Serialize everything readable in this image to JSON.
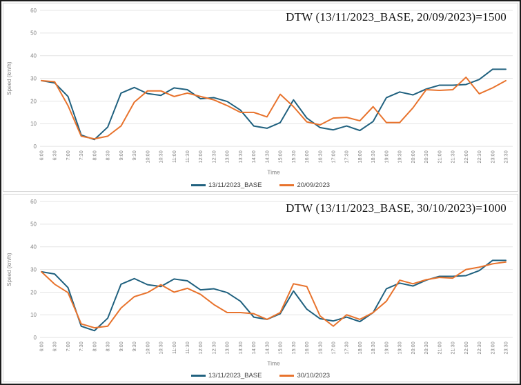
{
  "colors": {
    "base_series": "#20617f",
    "comparison_series": "#e8732d",
    "gridline": "#e4e4e4",
    "axis_text": "#808080",
    "legend_text": "#3f3f3f",
    "title_text": "#111111",
    "panel_border": "#d8d8d8",
    "page_border": "#1c1c1c"
  },
  "chart_data": [
    {
      "type": "line",
      "title": "DTW (13/11/2023_BASE, 20/09/2023)=1500",
      "xlabel": "Time",
      "ylabel": "Speed (km/h)",
      "ylim": [
        0,
        60
      ],
      "yticks": [
        0,
        10,
        20,
        30,
        40,
        50,
        60
      ],
      "grid": true,
      "legend_position": "bottom",
      "categories": [
        "6:00",
        "6:30",
        "7:00",
        "7:30",
        "8:00",
        "8:30",
        "9:00",
        "9:30",
        "10:00",
        "10:30",
        "11:00",
        "11:30",
        "12:00",
        "12:30",
        "13:00",
        "13:30",
        "14:00",
        "14:30",
        "15:00",
        "15:30",
        "16:00",
        "16:30",
        "17:00",
        "17:30",
        "18:00",
        "18:30",
        "19:00",
        "19:30",
        "20:00",
        "20:30",
        "21:00",
        "21:30",
        "22:00",
        "22:30",
        "23:00",
        "23:30"
      ],
      "series": [
        {
          "name": "13/11/2023_BASE",
          "color": "#20617f",
          "values": [
            29,
            28,
            22,
            5,
            3,
            8.5,
            23.5,
            26,
            23.3,
            22.5,
            25.8,
            25,
            21,
            21.5,
            19.8,
            16,
            9,
            8,
            10.5,
            20.5,
            12.5,
            8.3,
            7.3,
            9,
            7,
            11,
            21.5,
            24,
            22.7,
            25.3,
            27,
            27,
            27.3,
            29.5,
            34,
            34
          ]
        },
        {
          "name": "20/09/2023",
          "color": "#e8732d",
          "values": [
            29,
            28.5,
            18,
            4.5,
            3.3,
            4.5,
            9,
            19.5,
            24.5,
            24.5,
            22,
            23.5,
            22,
            20.5,
            18,
            15,
            15,
            13,
            23,
            17.5,
            10.8,
            9.5,
            12.5,
            12.8,
            11.3,
            17.5,
            10.5,
            10.5,
            17,
            25,
            24.7,
            25,
            30.5,
            23.2,
            25.8,
            29
          ]
        }
      ]
    },
    {
      "type": "line",
      "title": "DTW (13/11/2023_BASE, 30/10/2023)=1000",
      "xlabel": "Time",
      "ylabel": "Speed (km/h)",
      "ylim": [
        0,
        60
      ],
      "yticks": [
        0,
        10,
        20,
        30,
        40,
        50,
        60
      ],
      "grid": true,
      "legend_position": "bottom",
      "categories": [
        "6:00",
        "6:30",
        "7:00",
        "7:30",
        "8:00",
        "8:30",
        "9:00",
        "9:30",
        "10:00",
        "10:30",
        "11:00",
        "11:30",
        "12:00",
        "12:30",
        "13:00",
        "13:30",
        "14:00",
        "14:30",
        "15:00",
        "15:30",
        "16:00",
        "16:30",
        "17:00",
        "17:30",
        "18:00",
        "18:30",
        "19:00",
        "19:30",
        "20:00",
        "20:30",
        "21:00",
        "21:30",
        "22:00",
        "22:30",
        "23:00",
        "23:30"
      ],
      "series": [
        {
          "name": "13/11/2023_BASE",
          "color": "#20617f",
          "values": [
            29,
            28,
            22,
            5,
            3,
            8.5,
            23.5,
            26,
            23.3,
            22.5,
            25.8,
            25,
            21,
            21.5,
            19.8,
            16,
            9,
            8,
            10.5,
            20.5,
            12.5,
            8.3,
            7.3,
            9,
            7,
            11,
            21.5,
            24,
            22.7,
            25.3,
            27,
            27,
            27.3,
            29.5,
            34,
            34
          ]
        },
        {
          "name": "30/10/2023",
          "color": "#e8732d",
          "values": [
            29,
            23.5,
            19.8,
            6,
            4.3,
            5,
            13,
            18,
            19.8,
            23.3,
            20,
            21.7,
            19,
            14.5,
            11,
            11,
            10.5,
            8,
            11,
            23.7,
            22.5,
            9.5,
            5,
            10,
            8,
            11,
            16,
            25.3,
            23.7,
            25.5,
            26.5,
            26.2,
            30,
            31,
            32.5,
            33.3
          ]
        }
      ]
    }
  ]
}
